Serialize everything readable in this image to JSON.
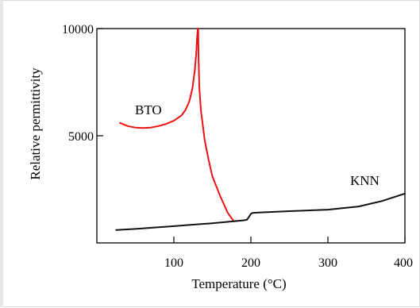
{
  "chart_data": {
    "type": "line",
    "title": "",
    "xlabel": "Temperature (°C)",
    "ylabel": "Relative permittivity",
    "xlim": [
      0,
      400
    ],
    "ylim": [
      0,
      10000
    ],
    "x_ticks": [
      100,
      200,
      300,
      400
    ],
    "x_tick_labels": [
      "100",
      "200",
      "300",
      "400"
    ],
    "y_ticks": [
      5000,
      10000
    ],
    "y_tick_labels": [
      "5000",
      "10000"
    ],
    "grid": false,
    "legend": "none",
    "annotations": [
      {
        "text": "BTO",
        "series": "BTO"
      },
      {
        "text": "KNN",
        "series": "KNN"
      }
    ],
    "series": [
      {
        "name": "BTO",
        "color": "#ee1111",
        "x": [
          30,
          40,
          50,
          60,
          70,
          80,
          90,
          100,
          110,
          115,
          120,
          124,
          127,
          129,
          130,
          131,
          131.5,
          132,
          133,
          135,
          140,
          145,
          150,
          160,
          170,
          178
        ],
        "y": [
          5600,
          5450,
          5380,
          5360,
          5380,
          5450,
          5550,
          5700,
          5950,
          6200,
          6600,
          7200,
          8000,
          8800,
          9500,
          10000,
          10000,
          8800,
          7300,
          6200,
          4800,
          3900,
          3100,
          2200,
          1400,
          1000
        ]
      },
      {
        "name": "KNN",
        "color": "#111111",
        "x": [
          25,
          50,
          100,
          150,
          190,
          195,
          198,
          200,
          202,
          210,
          250,
          300,
          340,
          370,
          400
        ],
        "y": [
          600,
          650,
          780,
          920,
          1050,
          1080,
          1250,
          1350,
          1400,
          1420,
          1480,
          1550,
          1700,
          1950,
          2300
        ]
      }
    ]
  }
}
